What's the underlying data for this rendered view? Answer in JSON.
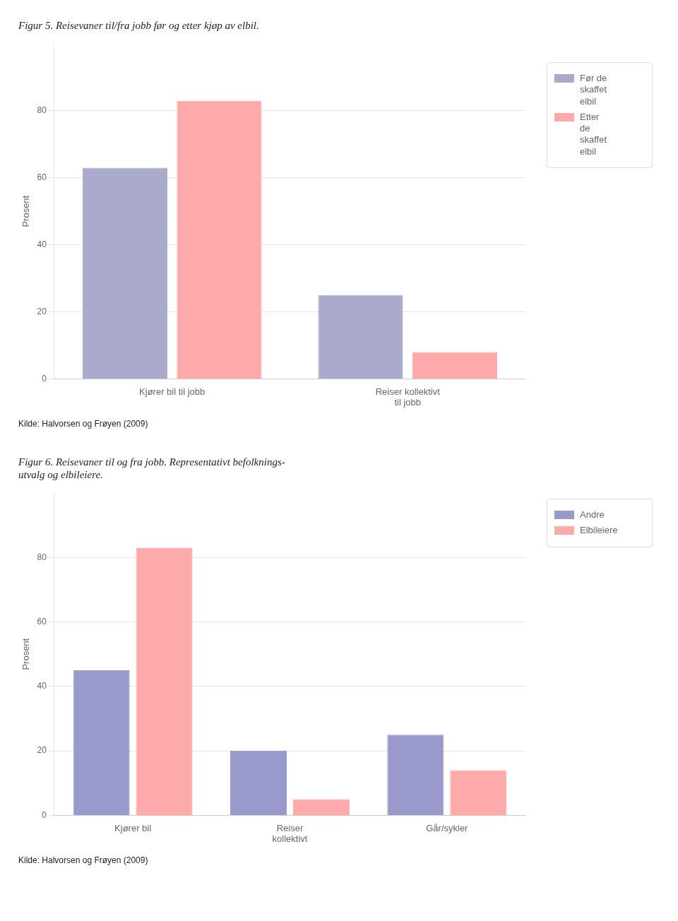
{
  "chart_data": [
    {
      "type": "bar",
      "title": "Figur 5. Reisevaner til/fra jobb før og etter kjøp av elbil.",
      "categories": [
        "Kjører bil til jobb",
        "Reiser kollektivt\ntil jobb"
      ],
      "series": [
        {
          "name": "Før de\nskaffet\nelbil",
          "color": "#aaaacc",
          "values": [
            63,
            25
          ]
        },
        {
          "name": "Etter\nde\nskaffet\nelbil",
          "color": "#ffaaaa",
          "values": [
            83,
            8
          ]
        }
      ],
      "ylabel": "Prosent",
      "ylim": [
        0,
        100
      ],
      "yticks": [
        0,
        20,
        40,
        60,
        80
      ],
      "grid": true,
      "legend": "upper right",
      "annotations": [
        "Kilde: Halvorsen og Frøyen (2009)"
      ]
    },
    {
      "type": "bar",
      "title": "Figur 6. Reisevaner til og fra jobb. Representativt befolknings-\nutvalg og elbileiere.",
      "categories": [
        "Kjører bil",
        "Reiser\nkollektivt",
        "Går/sykler"
      ],
      "series": [
        {
          "name": "Andre",
          "color": "#9999cc",
          "values": [
            45,
            20,
            25
          ]
        },
        {
          "name": "Elbileiere",
          "color": "#ffaaaa",
          "values": [
            83,
            5,
            14
          ]
        }
      ],
      "ylabel": "Prosent",
      "ylim": [
        0,
        100
      ],
      "yticks": [
        0,
        20,
        40,
        60,
        80
      ],
      "grid": true,
      "legend": "upper right",
      "annotations": [
        "Kilde: Halvorsen og Frøyen (2009)"
      ]
    }
  ]
}
